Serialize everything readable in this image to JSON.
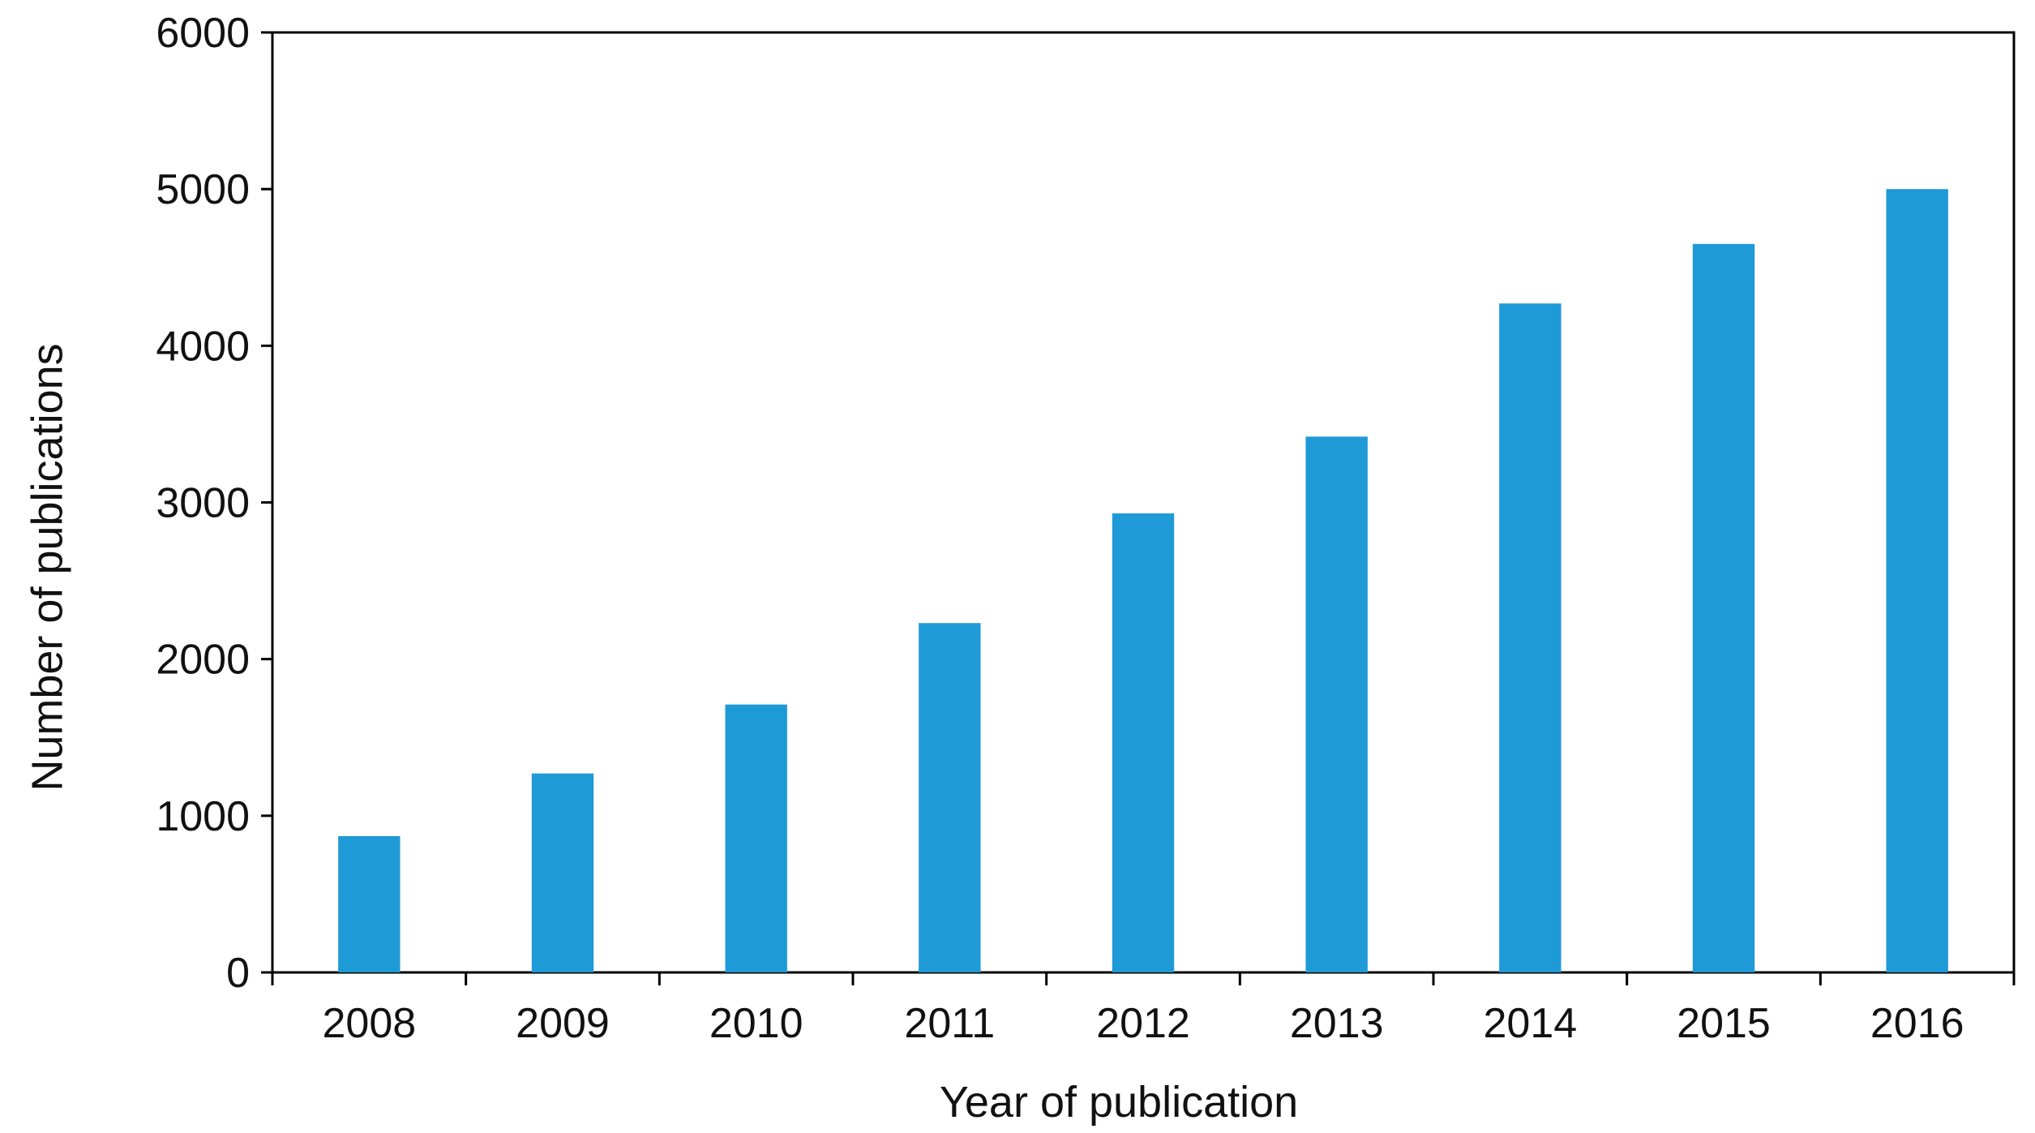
{
  "chart_data": {
    "type": "bar",
    "title": "",
    "xlabel": "Year of publication",
    "ylabel": "Number of publications",
    "categories": [
      "2008",
      "2009",
      "2010",
      "2011",
      "2012",
      "2013",
      "2014",
      "2015",
      "2016"
    ],
    "series": [
      {
        "color": "#1E9AD6",
        "values": [
          870,
          1270,
          1710,
          2230,
          2930,
          3420,
          4270,
          4650,
          5000
        ]
      }
    ],
    "ylim": [
      0,
      6000
    ],
    "yticks": [
      0,
      1000,
      2000,
      3000,
      4000,
      5000,
      6000
    ],
    "grid": false,
    "legend": "none"
  }
}
